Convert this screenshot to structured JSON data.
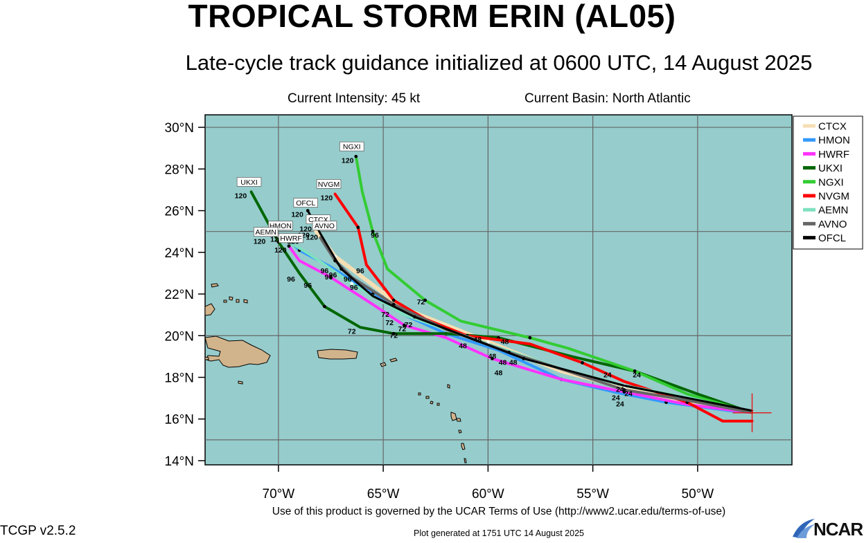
{
  "header": {
    "title": "TROPICAL STORM ERIN (AL05)",
    "subtitle": "Late-cycle track guidance initialized at 0600 UTC, 14 August 2025",
    "intensity": "Current Intensity: 45 kt",
    "basin": "Current Basin: North Atlantic"
  },
  "footer": {
    "terms": "Use of this product is governed by the UCAR Terms of Use (http://www2.ucar.edu/terms-of-use)",
    "version": "TCGP v2.5.2",
    "generated": "Plot generated at 1751 UTC   14 August 2025",
    "logo_text": "NCAR"
  },
  "map": {
    "lon_range": [
      -73.5,
      -45.5
    ],
    "lat_range": [
      13.8,
      30.6
    ],
    "lat_ticks": [
      {
        "v": 14,
        "label": "14°N"
      },
      {
        "v": 16,
        "label": "16°N"
      },
      {
        "v": 18,
        "label": "18°N"
      },
      {
        "v": 20,
        "label": "20°N"
      },
      {
        "v": 22,
        "label": "22°N"
      },
      {
        "v": 24,
        "label": "24°N"
      },
      {
        "v": 26,
        "label": "26°N"
      },
      {
        "v": 28,
        "label": "28°N"
      },
      {
        "v": 30,
        "label": "30°N"
      }
    ],
    "lon_ticks": [
      {
        "v": -70,
        "label": "70°W"
      },
      {
        "v": -65,
        "label": "65°W"
      },
      {
        "v": -60,
        "label": "60°W"
      },
      {
        "v": -55,
        "label": "55°W"
      },
      {
        "v": -50,
        "label": "50°W"
      }
    ],
    "grid_lats": [
      15,
      20,
      25,
      30
    ],
    "grid_lons": [
      -70,
      -65,
      -60,
      -55,
      -50
    ],
    "ocean_color": "#96cccc",
    "land_color": "#d2b48c",
    "storm_position": {
      "lon": -47.4,
      "lat": 16.3
    }
  },
  "chart_data": {
    "type": "line",
    "x_unit": "longitude",
    "y_unit": "latitude",
    "series": [
      {
        "name": "CTCX",
        "color": "#f5deb3",
        "width": 6,
        "points": [
          [
            -47.4,
            16.3
          ],
          [
            -50.5,
            16.8
          ],
          [
            -53.5,
            17.5
          ],
          [
            -56.5,
            18.3
          ],
          [
            -60.0,
            19.7
          ],
          [
            -64.0,
            21.3
          ],
          [
            -67.3,
            23.8
          ],
          [
            -68.2,
            25.0
          ]
        ],
        "hours": [],
        "end_tag": "CTCX"
      },
      {
        "name": "HMON",
        "color": "#3399ff",
        "width": 4,
        "points": [
          [
            -47.4,
            16.3
          ],
          [
            -48.5,
            16.4
          ],
          [
            -51.5,
            16.8
          ],
          [
            -54,
            17.3
          ],
          [
            -56.5,
            17.9
          ],
          [
            -59.5,
            19.3
          ],
          [
            -62,
            20.1
          ],
          [
            -64,
            21.0
          ],
          [
            -65.5,
            22.0
          ],
          [
            -67.5,
            23.3
          ],
          [
            -69,
            24.1
          ],
          [
            -69.6,
            24.7
          ]
        ],
        "hours": [],
        "end_tag": "HMON"
      },
      {
        "name": "HWRF",
        "color": "#ff33ff",
        "width": 4,
        "points": [
          [
            -47.4,
            16.3
          ],
          [
            -50.5,
            16.7
          ],
          [
            -53.5,
            17.3
          ],
          [
            -56.5,
            17.9
          ],
          [
            -59.8,
            18.9
          ],
          [
            -62,
            19.9
          ],
          [
            -64,
            20.5
          ],
          [
            -65.5,
            21.5
          ],
          [
            -67.5,
            22.8
          ],
          [
            -69,
            23.6
          ],
          [
            -69.5,
            24.3
          ]
        ],
        "hours": [
          {
            "label": "96",
            "lon": -68.6,
            "lat": 22.3
          },
          {
            "label": "120",
            "lon": -69.9,
            "lat": 24.0
          }
        ],
        "end_tag": "HWRF"
      },
      {
        "name": "UKXI",
        "color": "#006600",
        "width": 4,
        "points": [
          [
            -47.4,
            16.3
          ],
          [
            -50,
            17.2
          ],
          [
            -53,
            18.3
          ],
          [
            -56,
            19.0
          ],
          [
            -59.5,
            19.9
          ],
          [
            -62,
            20.1
          ],
          [
            -64.5,
            20.1
          ],
          [
            -66.1,
            20.4
          ],
          [
            -67.8,
            21.4
          ],
          [
            -69,
            23.0
          ],
          [
            -70,
            24.5
          ],
          [
            -71.3,
            26.9
          ]
        ],
        "hours": [
          {
            "label": "72",
            "lon": -66.5,
            "lat": 20.1
          },
          {
            "label": "96",
            "lon": -69.4,
            "lat": 22.6
          },
          {
            "label": "120",
            "lon": -71.8,
            "lat": 26.6
          }
        ],
        "end_tag": "UKXI"
      },
      {
        "name": "NGXI",
        "color": "#33cc33",
        "width": 4,
        "points": [
          [
            -47.4,
            16.3
          ],
          [
            -50.5,
            17.2
          ],
          [
            -53,
            18.3
          ],
          [
            -56.2,
            19.4
          ],
          [
            -58,
            19.9
          ],
          [
            -61.3,
            20.7
          ],
          [
            -63,
            21.7
          ],
          [
            -64.8,
            23.2
          ],
          [
            -65.5,
            25.0
          ],
          [
            -66.0,
            26.9
          ],
          [
            -66.3,
            28.6
          ]
        ],
        "hours": [
          {
            "label": "72",
            "lon": -63.2,
            "lat": 21.5
          },
          {
            "label": "96",
            "lon": -65.4,
            "lat": 24.7
          },
          {
            "label": "120",
            "lon": -66.7,
            "lat": 28.3
          }
        ],
        "end_tag": "NGXI"
      },
      {
        "name": "NVGM",
        "color": "#ff0000",
        "width": 4,
        "points": [
          [
            -47.4,
            15.9
          ],
          [
            -48.8,
            15.9
          ],
          [
            -50.5,
            16.8
          ],
          [
            -53.5,
            17.8
          ],
          [
            -55.5,
            18.7
          ],
          [
            -58,
            19.6
          ],
          [
            -61,
            20.0
          ],
          [
            -63,
            20.8
          ],
          [
            -64.5,
            21.7
          ],
          [
            -65.8,
            23.4
          ],
          [
            -66.2,
            25.2
          ],
          [
            -67.3,
            26.8
          ]
        ],
        "hours": [
          {
            "label": "96",
            "lon": -66.1,
            "lat": 23.0
          },
          {
            "label": "120",
            "lon": -67.7,
            "lat": 26.5
          }
        ],
        "end_tag": "NVGM"
      },
      {
        "name": "AEMN",
        "color": "#7fe0bf",
        "width": 4,
        "points": [
          [
            -47.4,
            16.3
          ],
          [
            -50.3,
            17.0
          ],
          [
            -53.5,
            17.6
          ],
          [
            -56.5,
            18.4
          ],
          [
            -60,
            19.6
          ],
          [
            -64,
            21.0
          ],
          [
            -66.5,
            22.5
          ],
          [
            -68.5,
            23.9
          ],
          [
            -70.0,
            24.8
          ]
        ],
        "hours": [],
        "end_tag": "AEMN"
      },
      {
        "name": "AVNO",
        "color": "#666666",
        "width": 4,
        "points": [
          [
            -47.4,
            16.3
          ],
          [
            -50.5,
            16.9
          ],
          [
            -53.5,
            17.4
          ],
          [
            -56.2,
            18.3
          ],
          [
            -59,
            19.2
          ],
          [
            -62,
            20.3
          ],
          [
            -64.5,
            21.5
          ],
          [
            -66.5,
            22.8
          ],
          [
            -67.3,
            23.6
          ],
          [
            -68.0,
            24.7
          ]
        ],
        "hours": [
          {
            "label": "96",
            "lon": -66.7,
            "lat": 22.6
          },
          {
            "label": "120",
            "lon": -68.4,
            "lat": 24.6
          }
        ],
        "end_tag": "AVNO"
      },
      {
        "name": "OFCL",
        "color": "#000000",
        "width": 3,
        "points": [
          [
            -47.4,
            16.4
          ],
          [
            -53.5,
            17.6
          ],
          [
            -58.3,
            18.9
          ],
          [
            -60.9,
            19.9
          ],
          [
            -63.5,
            20.9
          ],
          [
            -65.5,
            21.9
          ],
          [
            -67.0,
            23.2
          ],
          [
            -68.0,
            24.9
          ],
          [
            -68.6,
            26.0
          ]
        ],
        "hours": [
          {
            "label": "96",
            "lon": -67.4,
            "lat": 22.8
          },
          {
            "label": "120",
            "lon": -69.1,
            "lat": 25.7
          }
        ],
        "end_tag": "OFCL"
      }
    ],
    "shared_hour_labels": [
      {
        "label": "24",
        "lon": -54.3,
        "lat": 18.0
      },
      {
        "label": "24",
        "lon": -52.9,
        "lat": 18.0
      },
      {
        "label": "24",
        "lon": -53.7,
        "lat": 17.3
      },
      {
        "label": "24",
        "lon": -53.3,
        "lat": 17.1
      },
      {
        "label": "24",
        "lon": -53.9,
        "lat": 16.9
      },
      {
        "label": "24",
        "lon": -53.7,
        "lat": 16.6
      },
      {
        "label": "48",
        "lon": -60.5,
        "lat": 19.7
      },
      {
        "label": "48",
        "lon": -61.2,
        "lat": 19.4
      },
      {
        "label": "48",
        "lon": -59.2,
        "lat": 19.6
      },
      {
        "label": "48",
        "lon": -59.8,
        "lat": 18.9
      },
      {
        "label": "48",
        "lon": -59.3,
        "lat": 18.6
      },
      {
        "label": "48",
        "lon": -58.8,
        "lat": 18.6
      },
      {
        "label": "48",
        "lon": -59.5,
        "lat": 18.1
      },
      {
        "label": "72",
        "lon": -64.7,
        "lat": 20.5
      },
      {
        "label": "72",
        "lon": -63.8,
        "lat": 20.4
      },
      {
        "label": "72",
        "lon": -64.1,
        "lat": 20.2
      },
      {
        "label": "72",
        "lon": -64.5,
        "lat": 19.9
      },
      {
        "label": "72",
        "lon": -64.9,
        "lat": 20.9
      },
      {
        "label": "96",
        "lon": -66.4,
        "lat": 22.2
      },
      {
        "label": "96",
        "lon": -67.8,
        "lat": 23.0
      },
      {
        "label": "96",
        "lon": -67.6,
        "lat": 22.7
      },
      {
        "label": "120",
        "lon": -70.1,
        "lat": 24.5
      },
      {
        "label": "120",
        "lon": -68.7,
        "lat": 25.0
      },
      {
        "label": "120",
        "lon": -68.8,
        "lat": 24.7
      },
      {
        "label": "120",
        "lon": -70.9,
        "lat": 24.4
      },
      {
        "label": "120",
        "lon": -69.3,
        "lat": 24.4
      }
    ],
    "end_tags": [
      {
        "text": "UKXI",
        "lon": -71.4,
        "lat": 27.3
      },
      {
        "text": "OFCL",
        "lon": -68.7,
        "lat": 26.3
      },
      {
        "text": "NVGM",
        "lon": -67.6,
        "lat": 27.2
      },
      {
        "text": "NGXI",
        "lon": -66.5,
        "lat": 29.0
      },
      {
        "text": "CTCX",
        "lon": -68.1,
        "lat": 25.5
      },
      {
        "text": "AVNO",
        "lon": -67.8,
        "lat": 25.2
      },
      {
        "text": "HMON",
        "lon": -69.9,
        "lat": 25.2
      },
      {
        "text": "AEMN",
        "lon": -70.6,
        "lat": 24.9
      },
      {
        "text": "HWRF",
        "lon": -69.4,
        "lat": 24.6
      }
    ],
    "legend": {
      "placement": "top-right",
      "entries": [
        "CTCX",
        "HMON",
        "HWRF",
        "UKXI",
        "NGXI",
        "NVGM",
        "AEMN",
        "AVNO",
        "OFCL"
      ]
    }
  }
}
